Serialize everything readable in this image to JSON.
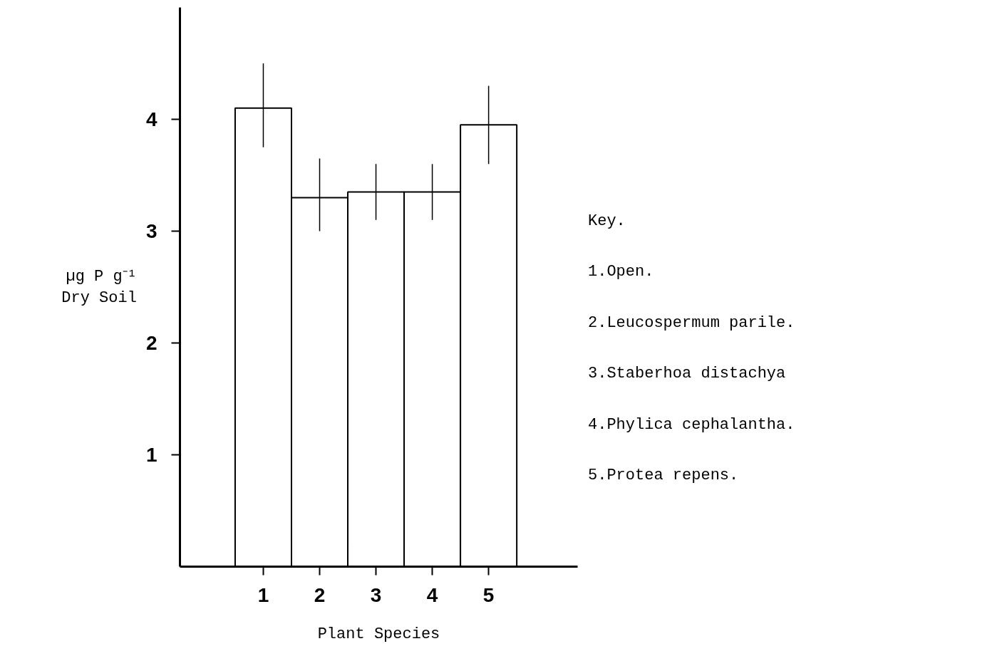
{
  "chart_data": {
    "type": "bar",
    "xlabel": "Plant Species",
    "ylabel": "µg P g⁻¹\nDry Soil",
    "categories": [
      "1",
      "2",
      "3",
      "4",
      "5"
    ],
    "values": [
      4.1,
      3.3,
      3.35,
      3.35,
      3.95
    ],
    "errors": [
      [
        3.75,
        4.5
      ],
      [
        3.0,
        3.65
      ],
      [
        3.1,
        3.6
      ],
      [
        3.1,
        3.6
      ],
      [
        3.6,
        4.3
      ]
    ],
    "color": "#ffffff",
    "ylim": [
      0,
      5
    ],
    "yticks": [
      1,
      2,
      3,
      4
    ],
    "grid": false,
    "annotations": [
      "Key.",
      "1.Open.",
      "2.Leucospermum parile.",
      "3.Staberhoa distachya",
      "4.Phylica cephalantha.",
      "5.Protea repens."
    ]
  }
}
